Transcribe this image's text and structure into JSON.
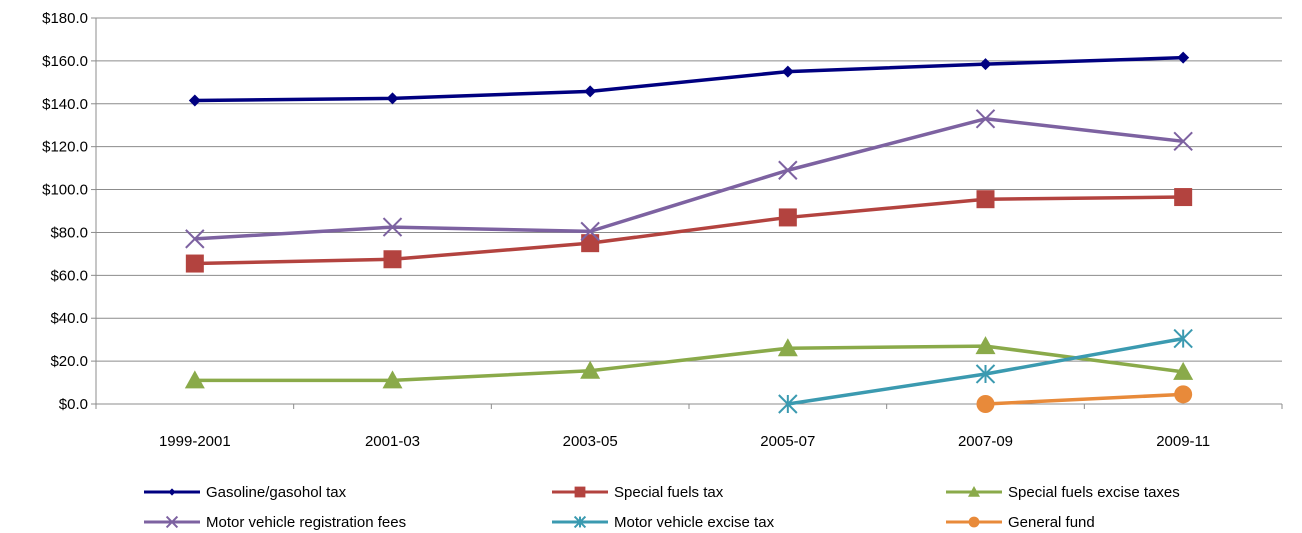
{
  "chart_data": {
    "type": "line",
    "title": "",
    "xlabel": "",
    "ylabel": "",
    "categories": [
      "1999-2001",
      "2001-03",
      "2003-05",
      "2005-07",
      "2007-09",
      "2009-11"
    ],
    "y_ticks": [
      "$0.0",
      "$20.0",
      "$40.0",
      "$60.0",
      "$80.0",
      "$100.0",
      "$120.0",
      "$140.0",
      "$160.0",
      "$180.0"
    ],
    "ylim": [
      0,
      180
    ],
    "y_step": 20,
    "grid": "horizontal",
    "legend_position": "bottom",
    "series": [
      {
        "name": "Gasoline/gasohol tax",
        "color": "#000080",
        "marker": "diamond",
        "values": [
          141.5,
          142.5,
          145.8,
          155.0,
          158.5,
          161.5
        ]
      },
      {
        "name": "Special fuels tax",
        "color": "#B3433F",
        "marker": "square",
        "values": [
          65.5,
          67.5,
          75.0,
          87.0,
          95.5,
          96.5
        ]
      },
      {
        "name": "Special fuels excise taxes",
        "color": "#8AAA4A",
        "marker": "triangle",
        "values": [
          11.0,
          11.0,
          15.5,
          26.0,
          27.0,
          15.0
        ]
      },
      {
        "name": "Motor vehicle registration fees",
        "color": "#7D62A1",
        "marker": "x",
        "values": [
          77.0,
          82.5,
          80.5,
          109.0,
          133.0,
          122.5
        ]
      },
      {
        "name": "Motor vehicle excise tax",
        "color": "#3B9AB0",
        "marker": "star",
        "values": [
          null,
          null,
          null,
          0.0,
          14.0,
          30.5
        ]
      },
      {
        "name": "General fund",
        "color": "#E88A3A",
        "marker": "circle",
        "values": [
          null,
          null,
          null,
          null,
          0.0,
          4.5
        ]
      }
    ]
  }
}
